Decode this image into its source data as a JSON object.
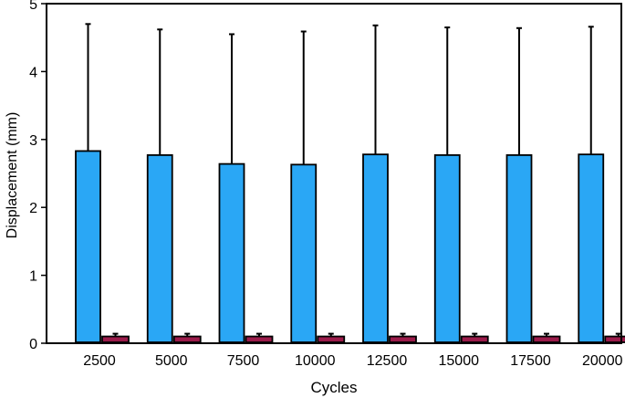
{
  "chart_data": {
    "type": "bar",
    "title": "",
    "xlabel": "Cycles",
    "ylabel": "Displacement (mm)",
    "ylim": [
      0,
      5
    ],
    "yticks": [
      0,
      1,
      2,
      3,
      4,
      5
    ],
    "grid": false,
    "legend": "none",
    "categories": [
      "2500",
      "5000",
      "7500",
      "10000",
      "12500",
      "15000",
      "17500",
      "20000"
    ],
    "series": [
      {
        "color": "#2aa7f5",
        "values": [
          2.83,
          2.77,
          2.64,
          2.63,
          2.78,
          2.77,
          2.77,
          2.78
        ],
        "error_upper": [
          4.7,
          4.62,
          4.55,
          4.59,
          4.68,
          4.65,
          4.64,
          4.66
        ]
      },
      {
        "color": "#9b1b4a",
        "values": [
          0.1,
          0.1,
          0.1,
          0.1,
          0.1,
          0.1,
          0.1,
          0.1
        ],
        "error_upper": [
          0.14,
          0.14,
          0.14,
          0.14,
          0.14,
          0.14,
          0.14,
          0.14
        ]
      }
    ]
  }
}
